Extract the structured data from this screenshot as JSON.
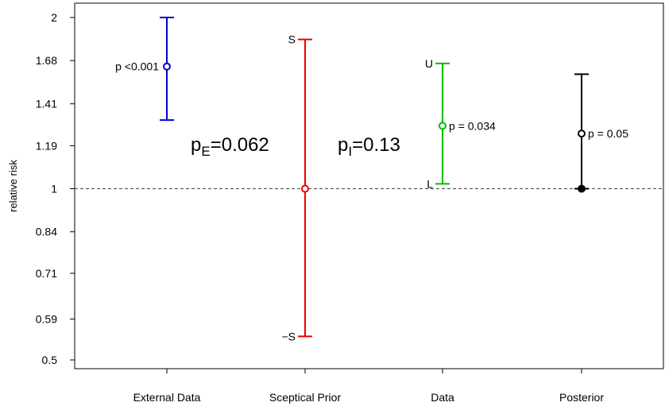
{
  "chart_data": {
    "type": "scatter",
    "ylabel": "relative risk",
    "y_scale": "log",
    "ylim": [
      0.5,
      2
    ],
    "y_ticks": [
      "2",
      "1.68",
      "1.41",
      "1.19",
      "1",
      "0.84",
      "0.71",
      "0.59",
      "0.5"
    ],
    "categories": [
      "External Data",
      "Sceptical Prior",
      "Data",
      "Posterior"
    ],
    "reference_line": 1,
    "series": [
      {
        "name": "External Data",
        "color": "#0000cc",
        "estimate": 1.64,
        "lower": 1.32,
        "upper": 2.0,
        "label": "p <0.001",
        "point": "open"
      },
      {
        "name": "Sceptical Prior",
        "color": "#ee0000",
        "estimate": 1.0,
        "lower": 0.55,
        "upper": 1.83,
        "end_labels": [
          "S",
          "−S"
        ],
        "point": "open"
      },
      {
        "name": "Data",
        "color": "#00bb00",
        "estimate": 1.29,
        "lower": 1.02,
        "upper": 1.66,
        "label": "p = 0.034",
        "end_labels": [
          "U",
          "L"
        ],
        "point": "open"
      },
      {
        "name": "Posterior",
        "color": "#000000",
        "estimate": 1.25,
        "lower": 1.0,
        "upper": 1.59,
        "label": "p = 0.05",
        "point": "open",
        "lower_point": "filled"
      }
    ],
    "annotations": {
      "pE": {
        "main": "p",
        "sub": "E",
        "value": "=0.062"
      },
      "pI": {
        "main": "p",
        "sub": "I",
        "value": "=0.13"
      }
    }
  }
}
